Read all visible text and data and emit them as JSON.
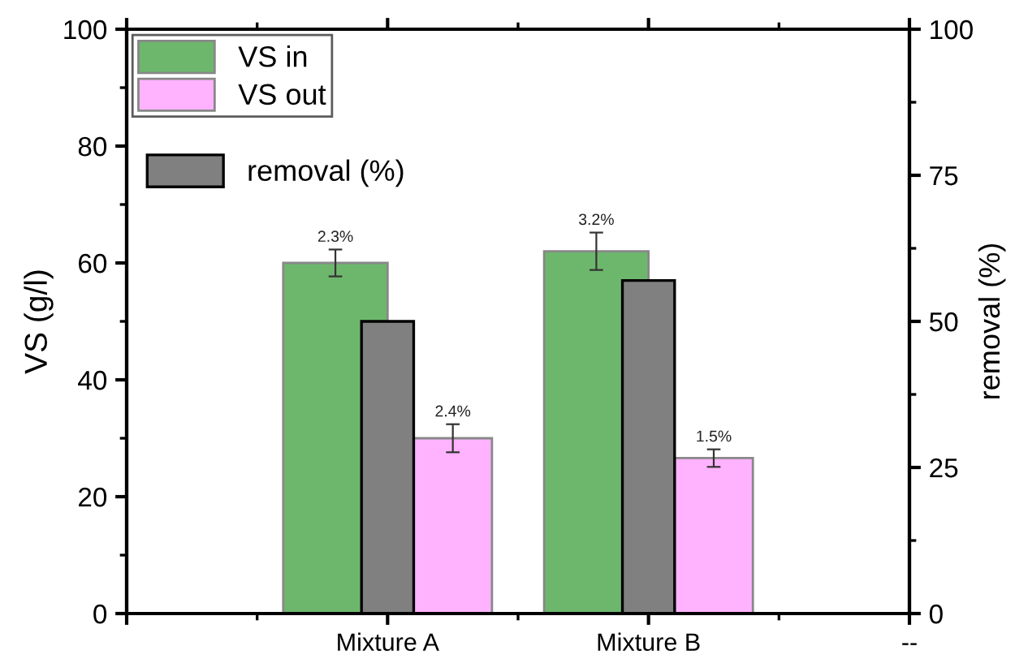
{
  "chart_data": {
    "type": "bar",
    "categories": [
      null,
      "Mixture A",
      "Mixture B",
      "--"
    ],
    "ylabel": "VS (g/l)",
    "y2label": "removal (%)",
    "ylim": [
      0,
      100
    ],
    "yticks": [
      0,
      20,
      40,
      60,
      80,
      100
    ],
    "y2lim": [
      0,
      100
    ],
    "y2ticks": [
      0,
      25,
      50,
      75,
      100
    ],
    "annotations": [
      "2.3%",
      "3.2%",
      "2.4%",
      "1.5%"
    ],
    "grid": false,
    "legend": "top left",
    "series": [
      {
        "name": "VS in",
        "color": "#6db76d",
        "values": [
          null,
          60,
          62,
          null
        ],
        "errors": [
          null,
          2.3,
          3.2,
          null
        ]
      },
      {
        "name": "VS out",
        "color": "#ffb3ff",
        "values": [
          null,
          30,
          26.6,
          null
        ],
        "errors": [
          null,
          2.4,
          1.5,
          null
        ]
      },
      {
        "name": "removal (%)",
        "color": "#808080",
        "axis": "y2",
        "values": [
          null,
          50,
          57,
          null
        ]
      }
    ]
  }
}
